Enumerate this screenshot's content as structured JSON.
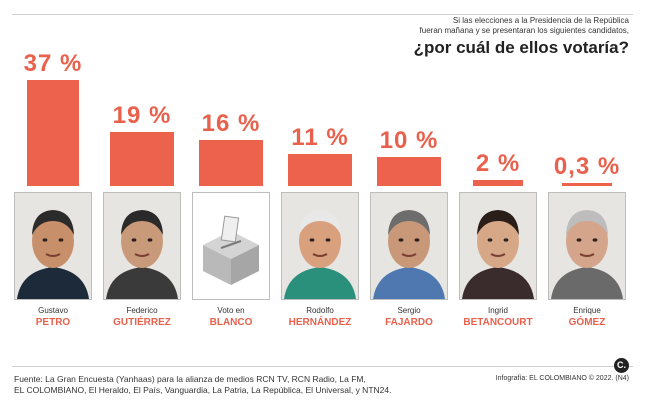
{
  "header": {
    "question_line1": "Si las elecciones a la Presidencia de la República",
    "question_line2": "fueran mañana y se presentaran los siguientes candidatos,",
    "question_main": "¿por cuál de ellos votaría?"
  },
  "chart_data": {
    "type": "bar",
    "categories": [
      "PETRO",
      "GUTIÉRREZ",
      "BLANCO",
      "HERNÁNDEZ",
      "FAJARDO",
      "BETANCOURT",
      "GÓMEZ"
    ],
    "first_names": [
      "Gustavo",
      "Federico",
      "Voto en",
      "Rodolfo",
      "Sergio",
      "Ingrid",
      "Enrique"
    ],
    "values": [
      37,
      19,
      16,
      11,
      10,
      2,
      0.3
    ],
    "value_labels": [
      "37 %",
      "19 %",
      "16 %",
      "11 %",
      "10 %",
      "2 %",
      "0,3 %"
    ],
    "unit": "%",
    "bar_color": "#ec624d",
    "label_color": "#e8614d",
    "photo_icons": [
      "candidate-photo",
      "candidate-photo",
      "ballot-box-icon",
      "candidate-photo",
      "candidate-photo",
      "candidate-photo",
      "candidate-photo"
    ]
  },
  "footer": {
    "source_line1": "Fuente: La Gran Encuesta (Yanhaas) para la alianza de medios RCN TV, RCN Radio, La FM,",
    "source_line2": "EL COLOMBIANO, El Heraldo, El País, Vanguardia, La Patria, La República, El Universal, y NTN24.",
    "credit": "Infografía: EL COLOMBIANO © 2022. (N4)",
    "logo_text": "C."
  }
}
